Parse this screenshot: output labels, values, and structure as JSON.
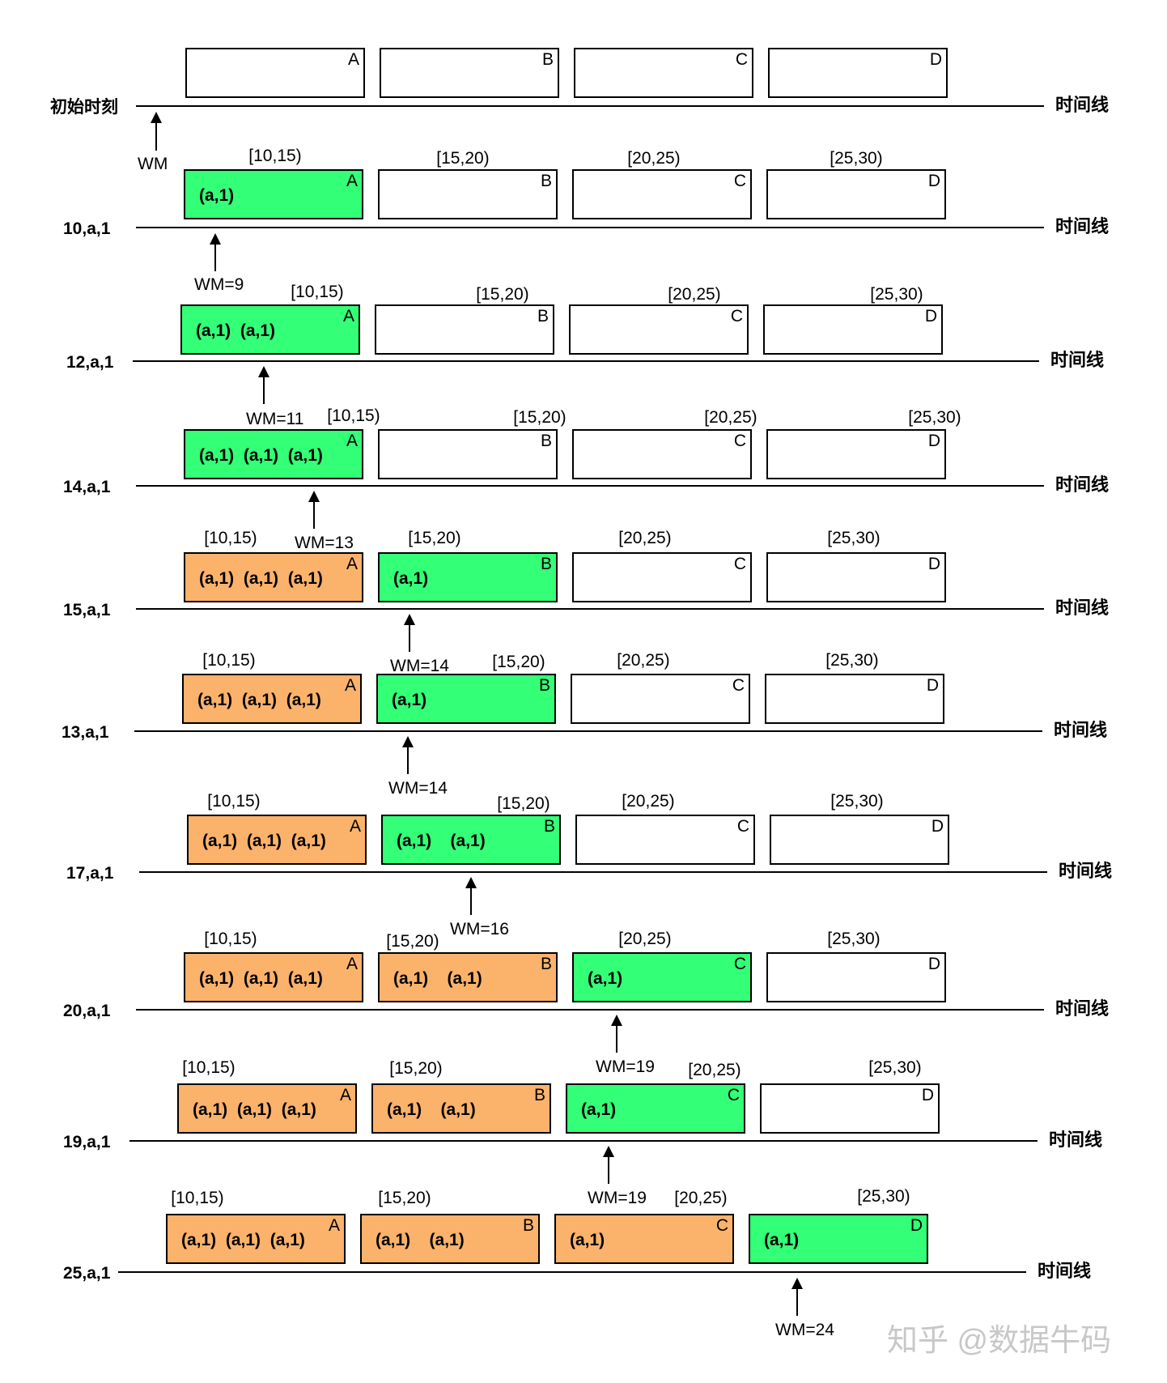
{
  "timeline_label": "时间线",
  "watermark": "知乎 @数据牛码",
  "colors": {
    "green": "#33ff77",
    "orange": "#fbb26b",
    "white": "#ffffff",
    "stroke": "#000000"
  },
  "rows": [
    {
      "event": "初始时刻",
      "wm": "WM",
      "ranges": [
        "",
        "",
        "",
        ""
      ],
      "boxes": [
        {
          "corner": "A",
          "fill": "white",
          "content": ""
        },
        {
          "corner": "B",
          "fill": "white",
          "content": ""
        },
        {
          "corner": "C",
          "fill": "white",
          "content": ""
        },
        {
          "corner": "D",
          "fill": "white",
          "content": ""
        }
      ]
    },
    {
      "event": "10,a,1",
      "wm": "WM=9",
      "ranges": [
        "[10,15)",
        "[15,20)",
        "[20,25)",
        "[25,30)"
      ],
      "boxes": [
        {
          "corner": "A",
          "fill": "green",
          "content": "(a,1)"
        },
        {
          "corner": "B",
          "fill": "white",
          "content": ""
        },
        {
          "corner": "C",
          "fill": "white",
          "content": ""
        },
        {
          "corner": "D",
          "fill": "white",
          "content": ""
        }
      ]
    },
    {
      "event": "12,a,1",
      "wm": "WM=11",
      "ranges": [
        "[10,15)",
        "[15,20)",
        "[20,25)",
        "[25,30)"
      ],
      "boxes": [
        {
          "corner": "A",
          "fill": "green",
          "content": "(a,1)  (a,1)"
        },
        {
          "corner": "B",
          "fill": "white",
          "content": ""
        },
        {
          "corner": "C",
          "fill": "white",
          "content": ""
        },
        {
          "corner": "D",
          "fill": "white",
          "content": ""
        }
      ]
    },
    {
      "event": "14,a,1",
      "wm": "WM=13",
      "ranges": [
        "[10,15)",
        "[15,20)",
        "[20,25)",
        "[25,30)"
      ],
      "boxes": [
        {
          "corner": "A",
          "fill": "green",
          "content": "(a,1)  (a,1)  (a,1)"
        },
        {
          "corner": "B",
          "fill": "white",
          "content": ""
        },
        {
          "corner": "C",
          "fill": "white",
          "content": ""
        },
        {
          "corner": "D",
          "fill": "white",
          "content": ""
        }
      ]
    },
    {
      "event": "15,a,1",
      "wm": "WM=14",
      "ranges": [
        "[10,15)",
        "[15,20)",
        "[20,25)",
        "[25,30)"
      ],
      "boxes": [
        {
          "corner": "A",
          "fill": "orange",
          "content": "(a,1)  (a,1)  (a,1)"
        },
        {
          "corner": "B",
          "fill": "green",
          "content": "(a,1)"
        },
        {
          "corner": "C",
          "fill": "white",
          "content": ""
        },
        {
          "corner": "D",
          "fill": "white",
          "content": ""
        }
      ]
    },
    {
      "event": "13,a,1",
      "wm": "WM=14",
      "ranges": [
        "[10,15)",
        "[15,20)",
        "[20,25)",
        "[25,30)"
      ],
      "boxes": [
        {
          "corner": "A",
          "fill": "orange",
          "content": "(a,1)  (a,1)  (a,1)"
        },
        {
          "corner": "B",
          "fill": "green",
          "content": "(a,1)"
        },
        {
          "corner": "C",
          "fill": "white",
          "content": ""
        },
        {
          "corner": "D",
          "fill": "white",
          "content": ""
        }
      ]
    },
    {
      "event": "17,a,1",
      "wm": "WM=16",
      "ranges": [
        "[10,15)",
        "[15,20)",
        "[20,25)",
        "[25,30)"
      ],
      "boxes": [
        {
          "corner": "A",
          "fill": "orange",
          "content": "(a,1)  (a,1)  (a,1)"
        },
        {
          "corner": "B",
          "fill": "green",
          "content": "(a,1)    (a,1)"
        },
        {
          "corner": "C",
          "fill": "white",
          "content": ""
        },
        {
          "corner": "D",
          "fill": "white",
          "content": ""
        }
      ]
    },
    {
      "event": "20,a,1",
      "wm": "WM=19",
      "ranges": [
        "[10,15)",
        "[15,20)",
        "[20,25)",
        "[25,30)"
      ],
      "boxes": [
        {
          "corner": "A",
          "fill": "orange",
          "content": "(a,1)  (a,1)  (a,1)"
        },
        {
          "corner": "B",
          "fill": "orange",
          "content": "(a,1)    (a,1)"
        },
        {
          "corner": "C",
          "fill": "green",
          "content": "(a,1)"
        },
        {
          "corner": "D",
          "fill": "white",
          "content": ""
        }
      ]
    },
    {
      "event": "19,a,1",
      "wm": "WM=19",
      "ranges": [
        "[10,15)",
        "[15,20)",
        "[20,25)",
        "[25,30)"
      ],
      "boxes": [
        {
          "corner": "A",
          "fill": "orange",
          "content": "(a,1)  (a,1)  (a,1)"
        },
        {
          "corner": "B",
          "fill": "orange",
          "content": "(a,1)    (a,1)"
        },
        {
          "corner": "C",
          "fill": "green",
          "content": "(a,1)"
        },
        {
          "corner": "D",
          "fill": "white",
          "content": ""
        }
      ]
    },
    {
      "event": "25,a,1",
      "wm": "WM=24",
      "ranges": [
        "[10,15)",
        "[15,20)",
        "[20,25)",
        "[25,30)"
      ],
      "boxes": [
        {
          "corner": "A",
          "fill": "orange",
          "content": "(a,1)  (a,1)  (a,1)"
        },
        {
          "corner": "B",
          "fill": "orange",
          "content": "(a,1)    (a,1)"
        },
        {
          "corner": "C",
          "fill": "orange",
          "content": "(a,1)"
        },
        {
          "corner": "D",
          "fill": "green",
          "content": "(a,1)"
        }
      ]
    }
  ]
}
